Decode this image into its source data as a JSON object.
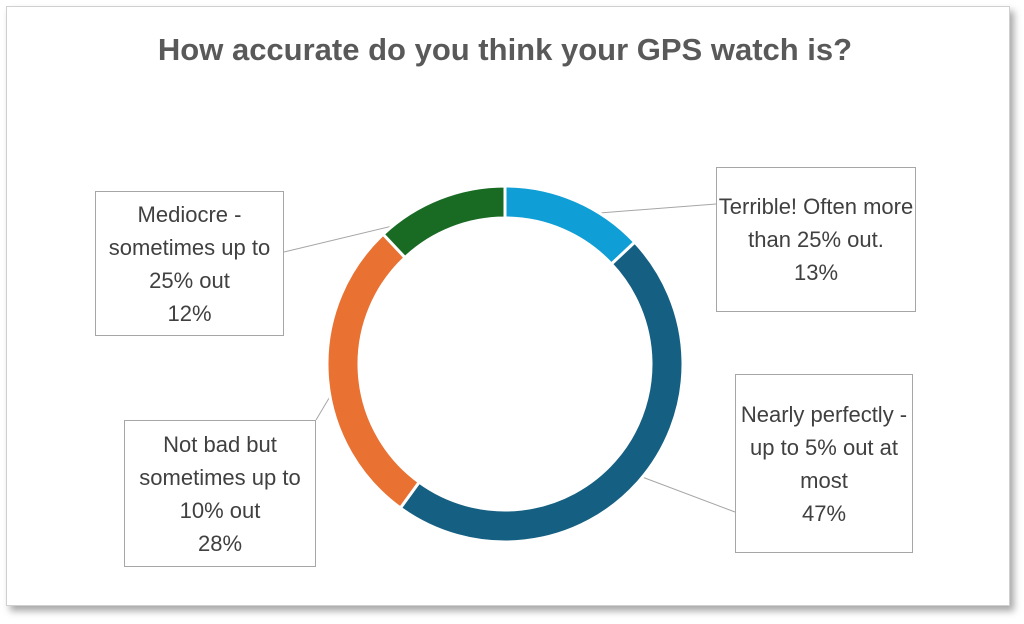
{
  "chart_data": {
    "type": "pie",
    "subtype": "doughnut",
    "title": "How accurate do you think your GPS watch is?",
    "categories": [
      "Terrible! Often more than 25% out.",
      "Nearly perfectly - up to 5% out at most",
      "Not bad but sometimes up to 10% out",
      "Mediocre - sometimes up to 25% out"
    ],
    "values": [
      13,
      47,
      28,
      12
    ],
    "value_labels": [
      "13%",
      "47%",
      "28%",
      "12%"
    ],
    "colors": [
      "#0f9ed5",
      "#156082",
      "#e97132",
      "#196b24"
    ],
    "legend": "none"
  }
}
